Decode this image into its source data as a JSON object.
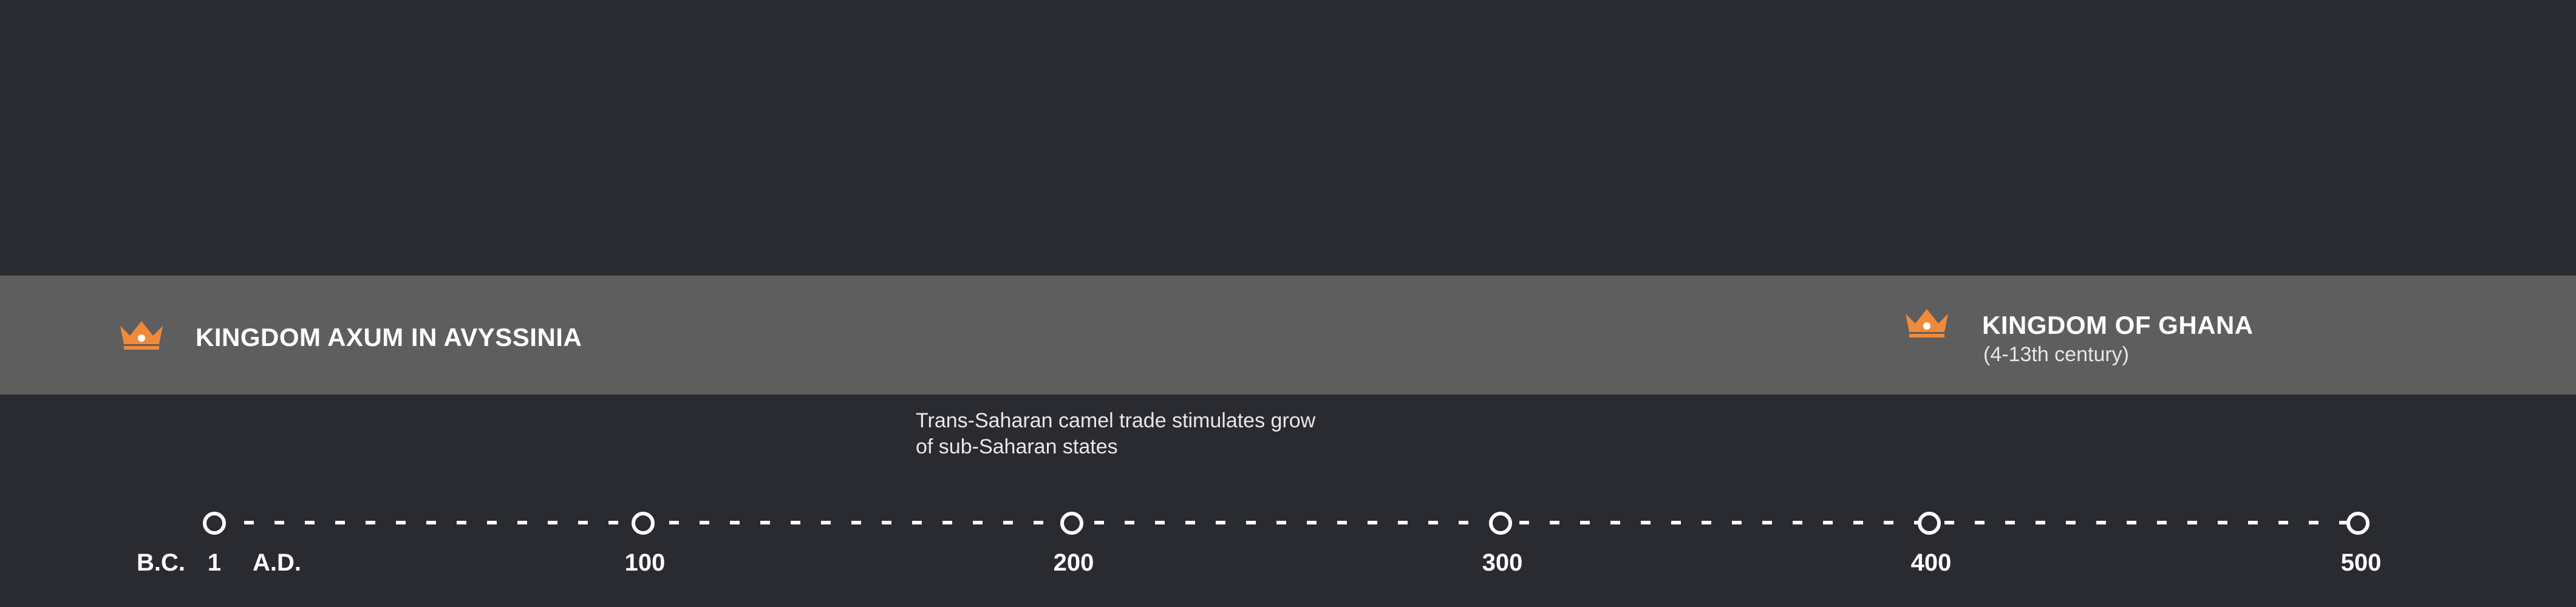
{
  "kingdoms": [
    {
      "title": "KINGDOM AXUM IN AVYSSINIA",
      "subtitle": "",
      "icon": "crown-icon",
      "icon_color": "#f08a3a"
    },
    {
      "title": "KINGDOM OF GHANA",
      "subtitle": "(4-13th century)",
      "icon": "crown-icon",
      "icon_color": "#f08a3a"
    }
  ],
  "event": {
    "line1": "Trans-Saharan camel trade stimulates grow",
    "line2": "of sub-Saharan states"
  },
  "axis": {
    "bc_label": "B.C.",
    "ad_label": "A.D.",
    "ticks": [
      "1",
      "100",
      "200",
      "300",
      "400",
      "500"
    ]
  },
  "colors": {
    "background": "#2a2b30",
    "band": "#5f5e5f",
    "accent": "#f08a3a",
    "text": "#ffffff"
  }
}
